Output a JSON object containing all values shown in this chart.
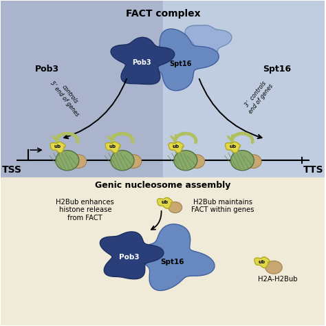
{
  "bg_left_color": "#aab4cc",
  "bg_right_color": "#c0cce0",
  "bg_bottom_color": "#f0ead8",
  "title_fact": "FACT complex",
  "label_pob3_left": "Pob3",
  "label_spt16_right": "Spt16",
  "label_controls_5": "controls\n5’ end of genes",
  "label_controls_3": "3’  controls\nend of genes",
  "label_tss": "TSS",
  "label_tts": "TTS",
  "label_genic": "Genic nucleosome assembly",
  "label_h2bub_left": "H2Bub enhances\nhistone release\nfrom FACT",
  "label_h2bub_right": "H2Bub maintains\nFACT within genes",
  "label_h2a_h2bub": "H2A-H2Bub",
  "label_ub": "ub",
  "label_pob3_bot": "Pob3",
  "label_spt16_bot": "Spt16",
  "color_pob3_dark": "#2a3f7a",
  "color_spt16_light": "#6888c0",
  "color_spt16_lighter": "#9ab0d8",
  "color_nucleosome_green": "#8aaa6a",
  "color_nucleosome_stripe": "#6a8a50",
  "color_nucleosome_tan": "#c8a870",
  "color_ub_yellow": "#e0d84a",
  "color_ub_border": "#b0aa20",
  "color_arrow_green": "#b0c060",
  "color_arrow_green_dark": "#889848"
}
